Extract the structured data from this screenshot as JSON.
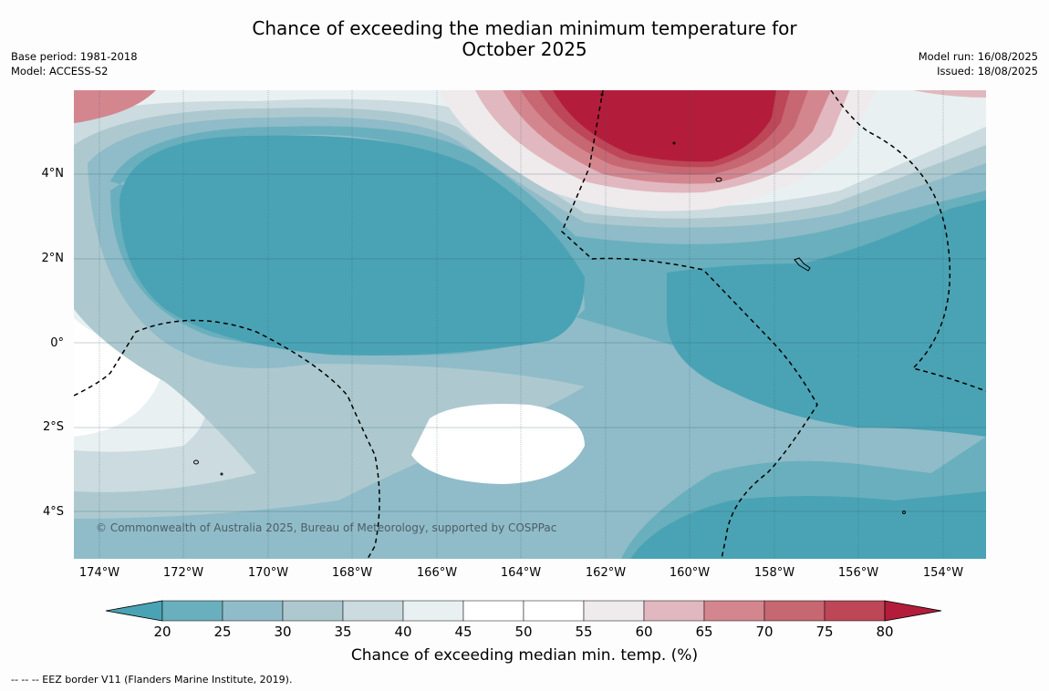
{
  "title_line1": "Chance of exceeding the median minimum temperature for",
  "title_line2": "October 2025",
  "meta": {
    "base_period": "Base period: 1981-2018",
    "model": "Model: ACCESS-S2",
    "model_run": "Model run: 16/08/2025",
    "issued": "Issued: 18/08/2025"
  },
  "lat_labels": [
    "4°N",
    "2°N",
    "0°",
    "2°S",
    "4°S"
  ],
  "lon_labels": [
    "174°W",
    "172°W",
    "170°W",
    "168°W",
    "166°W",
    "164°W",
    "162°W",
    "160°W",
    "158°W",
    "156°W",
    "154°W"
  ],
  "copyright": "© Commonwealth of Australia 2025, Bureau of Meteorology, supported by COSPPac",
  "colorbar": {
    "ticks": [
      "20",
      "25",
      "30",
      "35",
      "40",
      "45",
      "50",
      "55",
      "60",
      "65",
      "70",
      "75",
      "80"
    ],
    "colors": [
      "#4aa3b4",
      "#6aafbd",
      "#8fbcc8",
      "#adc9cf",
      "#cbdbdf",
      "#e9f0f2",
      "#ffffff",
      "#ffffff",
      "#efeaec",
      "#e1b8bf",
      "#d4868f",
      "#c66771",
      "#bd4657",
      "#b31d3b"
    ],
    "label": "Chance of exceeding median min. temp. (%)"
  },
  "footnote": "--  --  -- EEZ border V11 (Flanders Marine Institute, 2019)."
}
